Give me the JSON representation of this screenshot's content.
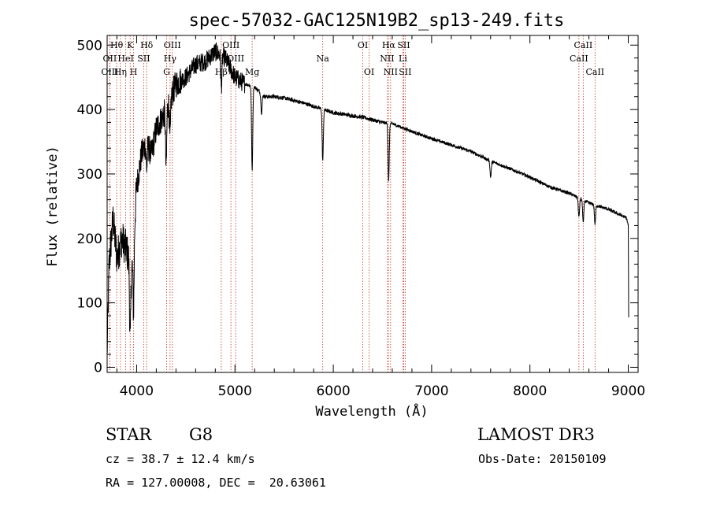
{
  "chart_data": {
    "type": "line",
    "title": "spec-57032-GAC125N19B2_sp13-249.fits",
    "xlabel": "Wavelength (Å)",
    "ylabel": "Flux (relative)",
    "xlim": [
      3700,
      9100
    ],
    "ylim": [
      -8,
      515
    ],
    "xticks": [
      4000,
      5000,
      6000,
      7000,
      8000,
      9000
    ],
    "yticks": [
      0,
      100,
      200,
      300,
      400,
      500
    ],
    "continuum": [
      [
        3700,
        20
      ],
      [
        3720,
        160
      ],
      [
        3760,
        230
      ],
      [
        3800,
        170
      ],
      [
        3850,
        200
      ],
      [
        3900,
        180
      ],
      [
        3950,
        150
      ],
      [
        4000,
        280
      ],
      [
        4050,
        330
      ],
      [
        4100,
        350
      ],
      [
        4150,
        330
      ],
      [
        4200,
        370
      ],
      [
        4300,
        400
      ],
      [
        4400,
        440
      ],
      [
        4500,
        450
      ],
      [
        4600,
        470
      ],
      [
        4700,
        475
      ],
      [
        4800,
        490
      ],
      [
        4900,
        480
      ],
      [
        5000,
        450
      ],
      [
        5100,
        440
      ],
      [
        5200,
        435
      ],
      [
        5300,
        420
      ],
      [
        5400,
        420
      ],
      [
        5500,
        418
      ],
      [
        5600,
        414
      ],
      [
        5700,
        410
      ],
      [
        5800,
        405
      ],
      [
        5900,
        400
      ],
      [
        6000,
        395
      ],
      [
        6100,
        393
      ],
      [
        6200,
        390
      ],
      [
        6300,
        388
      ],
      [
        6400,
        384
      ],
      [
        6500,
        380
      ],
      [
        6600,
        378
      ],
      [
        6700,
        372
      ],
      [
        6800,
        366
      ],
      [
        6900,
        360
      ],
      [
        7000,
        355
      ],
      [
        7200,
        345
      ],
      [
        7400,
        335
      ],
      [
        7600,
        320
      ],
      [
        7800,
        308
      ],
      [
        8000,
        295
      ],
      [
        8200,
        280
      ],
      [
        8400,
        270
      ],
      [
        8600,
        255
      ],
      [
        8800,
        245
      ],
      [
        8980,
        232
      ],
      [
        9000,
        220
      ],
      [
        9005,
        40
      ]
    ],
    "absorption_features": [
      {
        "wavelength": 3934,
        "depth": 120
      },
      {
        "wavelength": 3969,
        "depth": 110
      },
      {
        "wavelength": 4102,
        "depth": 40
      },
      {
        "wavelength": 4300,
        "depth": 90
      },
      {
        "wavelength": 4340,
        "depth": 60
      },
      {
        "wavelength": 4861,
        "depth": 50
      },
      {
        "wavelength": 5175,
        "depth": 130
      },
      {
        "wavelength": 5270,
        "depth": 30
      },
      {
        "wavelength": 5893,
        "depth": 80
      },
      {
        "wavelength": 6563,
        "depth": 90
      },
      {
        "wavelength": 7600,
        "depth": 25
      },
      {
        "wavelength": 8498,
        "depth": 30
      },
      {
        "wavelength": 8542,
        "depth": 35
      },
      {
        "wavelength": 8662,
        "depth": 30
      }
    ],
    "spectral_lines": [
      {
        "label": "Hθ",
        "wavelength": 3797,
        "row": 0
      },
      {
        "label": "OII",
        "wavelength": 3727,
        "row": 1
      },
      {
        "label": "OIII",
        "wavelength": 3727,
        "row": 2
      },
      {
        "label": "Hη",
        "wavelength": 3835,
        "row": 2
      },
      {
        "label": "HeI",
        "wavelength": 3889,
        "row": 1
      },
      {
        "label": "K",
        "wavelength": 3934,
        "row": 0
      },
      {
        "label": "H",
        "wavelength": 3969,
        "row": 2
      },
      {
        "label": "SII",
        "wavelength": 4072,
        "row": 1
      },
      {
        "label": "Hδ",
        "wavelength": 4102,
        "row": 0
      },
      {
        "label": "OIII",
        "wavelength": 4363,
        "row": 0
      },
      {
        "label": "Hγ",
        "wavelength": 4340,
        "row": 1
      },
      {
        "label": "G",
        "wavelength": 4305,
        "row": 2
      },
      {
        "label": "Hβ",
        "wavelength": 4861,
        "row": 2
      },
      {
        "label": "OIII",
        "wavelength": 4959,
        "row": 0
      },
      {
        "label": "OIII",
        "wavelength": 5007,
        "row": 1
      },
      {
        "label": "Mg",
        "wavelength": 5175,
        "row": 2
      },
      {
        "label": "Na",
        "wavelength": 5893,
        "row": 1
      },
      {
        "label": "OI",
        "wavelength": 6300,
        "row": 0
      },
      {
        "label": "OI",
        "wavelength": 6364,
        "row": 2
      },
      {
        "label": "Hα",
        "wavelength": 6563,
        "row": 0
      },
      {
        "label": "NII",
        "wavelength": 6548,
        "row": 1
      },
      {
        "label": "NII",
        "wavelength": 6583,
        "row": 2
      },
      {
        "label": "SII",
        "wavelength": 6716,
        "row": 0
      },
      {
        "label": "Li",
        "wavelength": 6708,
        "row": 1
      },
      {
        "label": "SII",
        "wavelength": 6731,
        "row": 2
      },
      {
        "label": "CaII",
        "wavelength": 8542,
        "row": 0
      },
      {
        "label": "CaII",
        "wavelength": 8498,
        "row": 1
      },
      {
        "label": "CaII",
        "wavelength": 8662,
        "row": 2
      }
    ],
    "line_color": "#000000",
    "marker_color": "#c0392b"
  },
  "info": {
    "class": "STAR",
    "subclass": "G8",
    "survey": "LAMOST DR3",
    "cz": "cz = 38.7 ± 12.4 km/s",
    "obs_date": "Obs-Date: 20150109",
    "radec": "RA = 127.00008, DEC =  20.63061"
  }
}
